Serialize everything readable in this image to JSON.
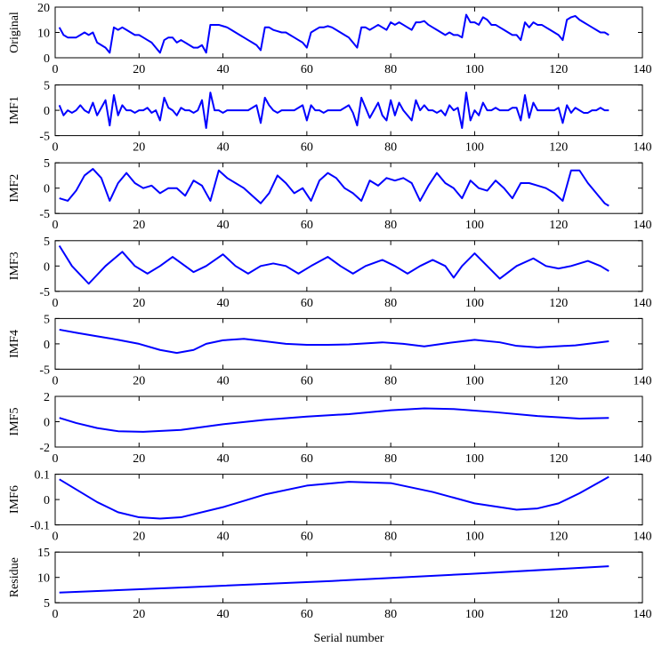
{
  "chart_data": [
    {
      "type": "line",
      "ylabel": "Original",
      "color": "#0000ff",
      "x": [
        1,
        2,
        3,
        4,
        5,
        6,
        7,
        8,
        9,
        10,
        11,
        12,
        13,
        14,
        15,
        16,
        17,
        18,
        19,
        20,
        21,
        22,
        23,
        24,
        25,
        26,
        27,
        28,
        29,
        30,
        31,
        32,
        33,
        34,
        35,
        36,
        37,
        38,
        39,
        40,
        41,
        42,
        43,
        44,
        45,
        46,
        47,
        48,
        49,
        50,
        51,
        52,
        53,
        54,
        55,
        56,
        57,
        58,
        59,
        60,
        61,
        62,
        63,
        64,
        65,
        66,
        67,
        68,
        69,
        70,
        71,
        72,
        73,
        74,
        75,
        76,
        77,
        78,
        79,
        80,
        81,
        82,
        83,
        84,
        85,
        86,
        87,
        88,
        89,
        90,
        91,
        92,
        93,
        94,
        95,
        96,
        97,
        98,
        99,
        100,
        101,
        102,
        103,
        104,
        105,
        106,
        107,
        108,
        109,
        110,
        111,
        112,
        113,
        114,
        115,
        116,
        117,
        118,
        119,
        120,
        121,
        122,
        123,
        124,
        125,
        126,
        127,
        128,
        129,
        130,
        131,
        132
      ],
      "values": [
        12,
        9,
        8,
        8,
        8,
        9,
        10,
        9,
        10,
        6,
        5,
        4,
        2,
        12,
        11,
        12,
        11,
        10,
        9,
        9,
        8,
        7,
        6,
        4,
        2,
        7,
        8,
        8,
        6,
        7,
        6,
        5,
        4,
        4,
        5,
        2,
        13,
        13,
        13,
        12.5,
        12,
        11,
        10,
        9,
        8,
        7,
        6,
        5,
        3,
        12,
        12,
        11,
        10.5,
        10,
        10,
        9,
        8,
        7,
        6,
        4,
        10,
        11,
        12,
        12,
        12.5,
        12,
        11,
        10,
        9,
        8,
        6,
        4,
        12,
        12,
        11,
        12,
        13,
        12,
        11,
        14,
        13,
        14,
        13,
        12,
        11,
        14,
        14,
        14.5,
        13,
        12,
        11,
        10,
        9,
        10,
        9,
        9,
        8,
        17,
        14,
        14,
        13,
        16,
        15,
        13,
        13,
        12,
        11,
        10,
        9,
        9,
        7,
        14,
        12,
        14,
        13,
        13,
        12,
        11,
        10,
        9,
        7,
        15,
        16,
        16.5,
        15,
        14,
        13,
        12,
        11,
        10,
        10,
        9
      ],
      "xlim": [
        0,
        140
      ],
      "xticks": [
        0,
        20,
        40,
        60,
        80,
        100,
        120,
        140
      ],
      "ylim": [
        0,
        20
      ],
      "yticks": [
        0,
        10,
        20
      ]
    },
    {
      "type": "line",
      "ylabel": "IMF1",
      "color": "#0000ff",
      "x": [
        1,
        2,
        3,
        4,
        5,
        6,
        7,
        8,
        9,
        10,
        11,
        12,
        13,
        14,
        15,
        16,
        17,
        18,
        19,
        20,
        21,
        22,
        23,
        24,
        25,
        26,
        27,
        28,
        29,
        30,
        31,
        32,
        33,
        34,
        35,
        36,
        37,
        38,
        39,
        40,
        41,
        42,
        43,
        44,
        45,
        46,
        47,
        48,
        49,
        50,
        51,
        52,
        53,
        54,
        55,
        56,
        57,
        58,
        59,
        60,
        61,
        62,
        63,
        64,
        65,
        66,
        67,
        68,
        69,
        70,
        71,
        72,
        73,
        74,
        75,
        76,
        77,
        78,
        79,
        80,
        81,
        82,
        83,
        84,
        85,
        86,
        87,
        88,
        89,
        90,
        91,
        92,
        93,
        94,
        95,
        96,
        97,
        98,
        99,
        100,
        101,
        102,
        103,
        104,
        105,
        106,
        107,
        108,
        109,
        110,
        111,
        112,
        113,
        114,
        115,
        116,
        117,
        118,
        119,
        120,
        121,
        122,
        123,
        124,
        125,
        126,
        127,
        128,
        129,
        130,
        131,
        132
      ],
      "values": [
        1,
        -1,
        0,
        -0.5,
        0,
        1,
        0,
        -0.5,
        1.5,
        -1,
        0.5,
        2,
        -3,
        3,
        -1,
        1,
        0,
        0,
        -0.5,
        0,
        0,
        0.5,
        -0.5,
        0,
        -2,
        2.5,
        0.5,
        0,
        -1,
        0.5,
        0,
        0,
        -0.5,
        0,
        2,
        -3.5,
        3.5,
        0,
        0,
        -0.5,
        0,
        0,
        0,
        0,
        0,
        0,
        0.5,
        1,
        -2.5,
        2.5,
        1,
        0,
        -0.5,
        0,
        0,
        0,
        0,
        0.5,
        1,
        -2,
        1,
        0,
        0,
        -0.5,
        0,
        0,
        0,
        0,
        0.5,
        1,
        -0.5,
        -3,
        2.5,
        0.5,
        -1.5,
        0,
        1.5,
        -1,
        -2,
        2,
        -1,
        1.5,
        0,
        -1,
        -2,
        2,
        0,
        1,
        0,
        0,
        -0.5,
        0,
        -1,
        1,
        0,
        0.5,
        -3.5,
        3.5,
        -2,
        0,
        -1,
        1.5,
        0,
        0,
        0.5,
        0,
        0,
        0,
        0.5,
        0.5,
        -2,
        3,
        -1.5,
        1.5,
        0,
        0,
        0,
        0,
        0,
        0.5,
        -2.5,
        1,
        -0.5,
        0.5,
        0,
        -0.5,
        -0.5,
        0,
        0,
        0.5,
        0,
        0
      ],
      "xlim": [
        0,
        140
      ],
      "xticks": [
        0,
        20,
        40,
        60,
        80,
        100,
        120,
        140
      ],
      "ylim": [
        -5,
        5
      ],
      "yticks": [
        -5,
        0,
        5
      ]
    },
    {
      "type": "line",
      "ylabel": "IMF2",
      "color": "#0000ff",
      "x": [
        1,
        3,
        5,
        7,
        9,
        11,
        13,
        15,
        17,
        19,
        21,
        23,
        25,
        27,
        29,
        31,
        33,
        35,
        37,
        39,
        41,
        43,
        45,
        47,
        49,
        51,
        53,
        55,
        57,
        59,
        61,
        63,
        65,
        67,
        69,
        71,
        73,
        75,
        77,
        79,
        81,
        83,
        85,
        87,
        89,
        91,
        93,
        95,
        97,
        99,
        101,
        103,
        105,
        107,
        109,
        111,
        113,
        115,
        117,
        119,
        121,
        123,
        125,
        127,
        129,
        131,
        132
      ],
      "values": [
        -2,
        -2.5,
        -0.5,
        2.5,
        3.8,
        2,
        -2.5,
        1,
        3,
        1,
        0,
        0.5,
        -1,
        0,
        0,
        -1.5,
        1.5,
        0.5,
        -2.5,
        3.5,
        2,
        1,
        0,
        -1.5,
        -3,
        -1,
        2.5,
        1,
        -1,
        0,
        -2.5,
        1.5,
        3,
        2,
        0,
        -1,
        -2.5,
        1.5,
        0.5,
        2,
        1.5,
        2,
        1,
        -2.5,
        0.5,
        3,
        1,
        0,
        -2,
        1.5,
        0,
        -0.5,
        1.5,
        0,
        -2,
        1,
        1,
        0.5,
        0,
        -1,
        -2.5,
        3.5,
        3.5,
        1,
        -1,
        -3,
        -3.5
      ],
      "xlim": [
        0,
        140
      ],
      "xticks": [
        0,
        20,
        40,
        60,
        80,
        100,
        120,
        140
      ],
      "ylim": [
        -5,
        5
      ],
      "yticks": [
        -5,
        0,
        5
      ]
    },
    {
      "type": "line",
      "ylabel": "IMF3",
      "color": "#0000ff",
      "x": [
        1,
        4,
        8,
        12,
        16,
        19,
        22,
        25,
        28,
        31,
        33,
        36,
        40,
        43,
        46,
        49,
        52,
        55,
        58,
        61,
        65,
        68,
        71,
        74,
        78,
        81,
        84,
        87,
        90,
        93,
        95,
        97,
        100,
        103,
        106,
        110,
        114,
        117,
        120,
        123,
        127,
        130,
        132
      ],
      "values": [
        4,
        0,
        -3.5,
        0,
        2.8,
        0,
        -1.5,
        0,
        1.8,
        0,
        -1.2,
        0,
        2.3,
        0,
        -1.5,
        0,
        0.5,
        0,
        -1.5,
        0,
        1.8,
        0,
        -1.5,
        0,
        1.2,
        0,
        -1.5,
        0,
        1.2,
        0,
        -2.3,
        0,
        2.5,
        0,
        -2.5,
        0,
        1.5,
        0,
        -0.5,
        0,
        1,
        0,
        -1
      ],
      "xlim": [
        0,
        140
      ],
      "xticks": [
        0,
        20,
        40,
        60,
        80,
        100,
        120,
        140
      ],
      "ylim": [
        -5,
        5
      ],
      "yticks": [
        -5,
        0,
        5
      ]
    },
    {
      "type": "line",
      "ylabel": "IMF4",
      "color": "#0000ff",
      "x": [
        1,
        5,
        10,
        15,
        20,
        25,
        29,
        33,
        36,
        40,
        45,
        50,
        55,
        60,
        65,
        70,
        78,
        83,
        88,
        94,
        100,
        106,
        110,
        115,
        124,
        132
      ],
      "values": [
        2.8,
        2.2,
        1.5,
        0.8,
        0,
        -1.2,
        -1.8,
        -1.2,
        0,
        0.7,
        1,
        0.5,
        0,
        -0.2,
        -0.2,
        -0.1,
        0.3,
        0,
        -0.5,
        0.2,
        0.8,
        0.3,
        -0.4,
        -0.7,
        -0.3,
        0.5
      ],
      "xlim": [
        0,
        140
      ],
      "xticks": [
        0,
        20,
        40,
        60,
        80,
        100,
        120,
        140
      ],
      "ylim": [
        -5,
        5
      ],
      "yticks": [
        -5,
        0,
        5
      ]
    },
    {
      "type": "line",
      "ylabel": "IMF5",
      "color": "#0000ff",
      "x": [
        1,
        5,
        10,
        15,
        21,
        30,
        40,
        50,
        60,
        70,
        80,
        88,
        95,
        105,
        115,
        125,
        132
      ],
      "values": [
        0.3,
        -0.1,
        -0.5,
        -0.75,
        -0.8,
        -0.65,
        -0.2,
        0.15,
        0.4,
        0.6,
        0.9,
        1.05,
        1,
        0.75,
        0.45,
        0.25,
        0.3
      ],
      "xlim": [
        0,
        140
      ],
      "xticks": [
        0,
        20,
        40,
        60,
        80,
        100,
        120,
        140
      ],
      "ylim": [
        -2,
        2
      ],
      "yticks": [
        -2,
        0,
        2
      ]
    },
    {
      "type": "line",
      "ylabel": "IMF6",
      "color": "#0000ff",
      "x": [
        1,
        5,
        10,
        15,
        20,
        25,
        30,
        40,
        50,
        60,
        70,
        80,
        90,
        100,
        110,
        115,
        120,
        125,
        132
      ],
      "values": [
        0.08,
        0.04,
        -0.01,
        -0.05,
        -0.07,
        -0.075,
        -0.07,
        -0.03,
        0.02,
        0.055,
        0.07,
        0.065,
        0.03,
        -0.015,
        -0.04,
        -0.035,
        -0.015,
        0.025,
        0.09
      ],
      "xlim": [
        0,
        140
      ],
      "xticks": [
        0,
        20,
        40,
        60,
        80,
        100,
        120,
        140
      ],
      "ylim": [
        -0.1,
        0.1
      ],
      "yticks": [
        -0.1,
        0,
        0.1
      ]
    },
    {
      "type": "line",
      "ylabel": "Residue",
      "xlabel": "Serial number",
      "color": "#0000ff",
      "x": [
        1,
        33,
        66,
        99,
        132
      ],
      "values": [
        7,
        8.1,
        9.3,
        10.7,
        12.2
      ],
      "xlim": [
        0,
        140
      ],
      "xticks": [
        0,
        20,
        40,
        60,
        80,
        100,
        120,
        140
      ],
      "ylim": [
        5,
        15
      ],
      "yticks": [
        5,
        10,
        15
      ]
    }
  ]
}
